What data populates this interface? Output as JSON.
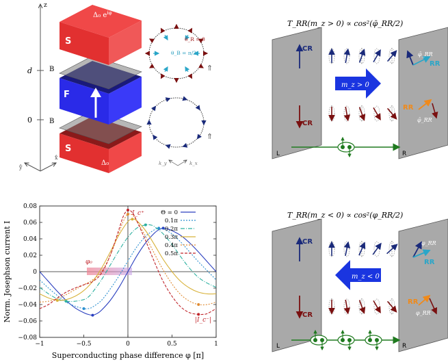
{
  "panel_a": {
    "axis_z": "z",
    "axis_y": "ŷ",
    "axis_x": "x̂",
    "tick_d": "d",
    "tick_0": "0",
    "label_B_top": "B",
    "label_B_bottom": "B",
    "label_S_top": "S",
    "label_S_bottom": "S",
    "label_F": "F",
    "gap_top": "Δ₀ e",
    "gap_top_sup": "iφ",
    "gap_bottom": "Δ₀",
    "theta_R": "θ_R = 0",
    "theta_B": "θ_B = π/2",
    "ky": "k_y",
    "kx": "k_x"
  },
  "panel_b_top": {
    "title": "T_RR(m_z > 0) ∝ cos²(φ̄_RR/2)",
    "left_label": "L",
    "right_label": "R",
    "cr_up": "CR",
    "cr_down": "CR",
    "rr_up": "RR",
    "rr_down": "RR",
    "phi_up": "φ̄_RR",
    "phi_down": "φ̄_RR",
    "mz": "m_z > 0"
  },
  "panel_b_bottom": {
    "title": "T_RR(m_z < 0) ∝ cos²(φ_RR/2)",
    "left_label": "L",
    "right_label": "R",
    "cr_up": "CR",
    "cr_down": "CR",
    "rr_up": "RR",
    "rr_down": "RR",
    "phi_up": "φ_RR",
    "phi_down": "φ_RR",
    "mz": "m_z < 0"
  },
  "chart_data": {
    "type": "line",
    "xlabel": "Superconducting phase difference φ [π]",
    "ylabel": "Norm. Josephson current I",
    "xlim": [
      -1,
      1
    ],
    "ylim": [
      -0.08,
      0.08
    ],
    "xticks": [
      "−1",
      "−0.5",
      "0",
      "0.5",
      "1"
    ],
    "yticks": [
      "0.08",
      "0.06",
      "0.04",
      "0.02",
      "0",
      "−0.02",
      "−0.04",
      "−0.06",
      "−0.08"
    ],
    "ann_phi0": "φ₀",
    "ann_icplus": "I_c⁺",
    "ann_icminus": "|I_c⁻|",
    "legend_position": "top-right",
    "series": [
      {
        "name": "Θ = 0",
        "color": "#2a3fbf",
        "dash": "",
        "x": [
          -1,
          -0.9,
          -0.8,
          -0.7,
          -0.6,
          -0.5,
          -0.45,
          -0.4,
          -0.35,
          -0.3,
          -0.2,
          -0.1,
          0,
          0.1,
          0.2,
          0.3,
          0.35,
          0.4,
          0.45,
          0.5,
          0.6,
          0.7,
          0.8,
          0.9,
          1
        ],
        "y": [
          0,
          -0.012,
          -0.024,
          -0.035,
          -0.044,
          -0.05,
          -0.052,
          -0.053,
          -0.051,
          -0.047,
          -0.035,
          -0.019,
          0,
          0.019,
          0.035,
          0.047,
          0.051,
          0.053,
          0.052,
          0.05,
          0.044,
          0.035,
          0.024,
          0.012,
          0
        ]
      },
      {
        "name": "0.1π",
        "color": "#2b8fd0",
        "dash": "2,2",
        "x": [
          -1,
          -0.9,
          -0.8,
          -0.7,
          -0.6,
          -0.5,
          -0.45,
          -0.4,
          -0.3,
          -0.2,
          -0.1,
          0,
          0.1,
          0.2,
          0.3,
          0.35,
          0.4,
          0.5,
          0.6,
          0.7,
          0.8,
          0.9,
          1
        ],
        "y": [
          -0.01,
          -0.02,
          -0.029,
          -0.037,
          -0.042,
          -0.045,
          -0.045,
          -0.043,
          -0.035,
          -0.021,
          -0.005,
          0.013,
          0.03,
          0.043,
          0.051,
          0.053,
          0.052,
          0.046,
          0.036,
          0.024,
          0.012,
          0.001,
          -0.01
        ]
      },
      {
        "name": "0.2π",
        "color": "#2cb0a0",
        "dash": "6,2,1,2",
        "x": [
          -1,
          -0.9,
          -0.8,
          -0.7,
          -0.6,
          -0.5,
          -0.45,
          -0.4,
          -0.3,
          -0.2,
          -0.1,
          0,
          0.1,
          0.2,
          0.25,
          0.3,
          0.4,
          0.5,
          0.6,
          0.7,
          0.8,
          0.9,
          1
        ],
        "y": [
          -0.019,
          -0.027,
          -0.033,
          -0.036,
          -0.036,
          -0.034,
          -0.031,
          -0.025,
          -0.01,
          0.008,
          0.026,
          0.042,
          0.053,
          0.057,
          0.057,
          0.055,
          0.046,
          0.033,
          0.018,
          0.004,
          -0.007,
          -0.014,
          -0.019
        ]
      },
      {
        "name": "0.3π",
        "color": "#d8b23a",
        "dash": "",
        "x": [
          -1,
          -0.9,
          -0.8,
          -0.7,
          -0.6,
          -0.5,
          -0.4,
          -0.3,
          -0.2,
          -0.1,
          0,
          0.05,
          0.1,
          0.2,
          0.3,
          0.4,
          0.5,
          0.6,
          0.7,
          0.8,
          0.9,
          1
        ],
        "y": [
          -0.027,
          -0.032,
          -0.035,
          -0.034,
          -0.03,
          -0.023,
          -0.012,
          0.004,
          0.024,
          0.045,
          0.061,
          0.064,
          0.062,
          0.05,
          0.033,
          0.015,
          0,
          -0.012,
          -0.02,
          -0.025,
          -0.027,
          -0.027
        ]
      },
      {
        "name": "0.4π",
        "color": "#e08a30",
        "dash": "2,2",
        "x": [
          -1,
          -0.9,
          -0.8,
          -0.7,
          -0.6,
          -0.5,
          -0.4,
          -0.3,
          -0.2,
          -0.1,
          -0.05,
          0,
          0.05,
          0.1,
          0.2,
          0.3,
          0.4,
          0.5,
          0.6,
          0.7,
          0.8,
          0.9,
          1
        ],
        "y": [
          -0.037,
          -0.036,
          -0.033,
          -0.028,
          -0.022,
          -0.016,
          -0.01,
          0,
          0.02,
          0.048,
          0.062,
          0.07,
          0.069,
          0.062,
          0.043,
          0.022,
          0.002,
          -0.015,
          -0.028,
          -0.036,
          -0.04,
          -0.04,
          -0.037
        ]
      },
      {
        "name": "0.5π",
        "color": "#c0242a",
        "dash": "4,2",
        "x": [
          -1,
          -0.9,
          -0.8,
          -0.7,
          -0.6,
          -0.5,
          -0.4,
          -0.3,
          -0.2,
          -0.1,
          -0.05,
          0,
          0.05,
          0.1,
          0.2,
          0.3,
          0.4,
          0.5,
          0.6,
          0.7,
          0.8,
          0.85,
          0.9,
          1
        ],
        "y": [
          -0.045,
          -0.04,
          -0.032,
          -0.025,
          -0.02,
          -0.016,
          -0.012,
          -0.002,
          0.02,
          0.052,
          0.068,
          0.075,
          0.072,
          0.062,
          0.038,
          0.012,
          -0.012,
          -0.03,
          -0.043,
          -0.05,
          -0.052,
          -0.052,
          -0.051,
          -0.045
        ]
      }
    ]
  }
}
